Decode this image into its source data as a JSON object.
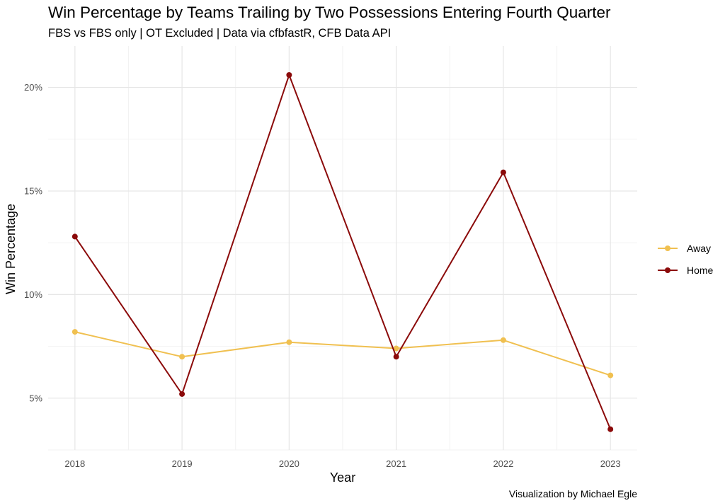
{
  "title": "Win Percentage by Teams Trailing by Two Possessions Entering Fourth Quarter",
  "subtitle": "FBS vs FBS only | OT Excluded | Data via cfbfastR, CFB Data API",
  "caption": "Visualization by Michael Egle",
  "chart_data": {
    "type": "line",
    "title": "Win Percentage by Teams Trailing by Two Possessions Entering Fourth Quarter",
    "subtitle": "FBS vs FBS only | OT Excluded | Data via cfbfastR, CFB Data API",
    "xlabel": "Year",
    "ylabel": "Win Percentage",
    "x": [
      2018,
      2019,
      2020,
      2021,
      2022,
      2023
    ],
    "ylim": [
      2.5,
      22
    ],
    "yticks": [
      5,
      10,
      15,
      20
    ],
    "ytick_labels": [
      "5%",
      "10%",
      "15%",
      "20%"
    ],
    "grid": true,
    "legend_position": "right",
    "series": [
      {
        "name": "Away",
        "color": "#F0C050",
        "values": [
          8.2,
          7.0,
          7.7,
          7.4,
          7.8,
          6.1
        ]
      },
      {
        "name": "Home",
        "color": "#8B0A0A",
        "values": [
          12.8,
          5.2,
          20.6,
          7.0,
          15.9,
          3.5
        ]
      }
    ]
  }
}
